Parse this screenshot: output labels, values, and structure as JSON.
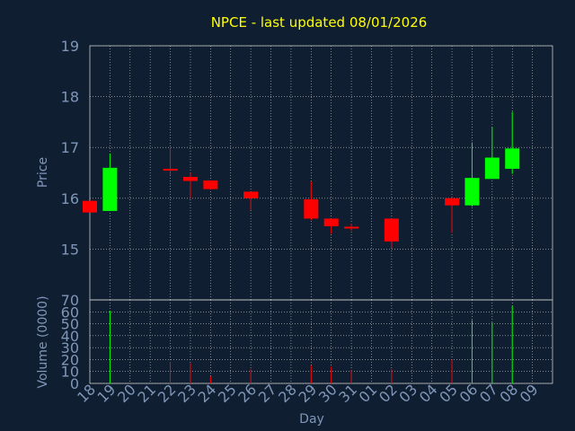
{
  "colors": {
    "background": "#0f1e30",
    "axis_text": "#7f96b8",
    "title": "#ffff00",
    "grid": "#c8c8c8",
    "up": "#00ff00",
    "down": "#ff0000",
    "plot_border": "#c8c8c8"
  },
  "chart_data": [
    {
      "type": "candlestick",
      "title": "NPCE - last updated 08/01/2026",
      "ylabel": "Price",
      "ylim": [
        14.0,
        19.0
      ],
      "yticks": [
        15,
        16,
        17,
        18,
        19
      ],
      "x_tick_labels": [
        "18",
        "19",
        "20",
        "21",
        "22",
        "23",
        "24",
        "25",
        "26",
        "27",
        "28",
        "29",
        "30",
        "31",
        "01",
        "02",
        "03",
        "04",
        "05",
        "06",
        "07",
        "08",
        "09"
      ],
      "grid": true,
      "candles": [
        {
          "x": "18",
          "open": 15.95,
          "high": 15.95,
          "low": 15.72,
          "close": 15.72
        },
        {
          "x": "19",
          "open": 15.75,
          "high": 16.88,
          "low": 15.75,
          "close": 16.6
        },
        {
          "x": "22",
          "open": 16.58,
          "high": 17.0,
          "low": 16.45,
          "close": 16.56
        },
        {
          "x": "23",
          "open": 16.42,
          "high": 16.5,
          "low": 16.0,
          "close": 16.34
        },
        {
          "x": "24",
          "open": 16.35,
          "high": 16.35,
          "low": 16.17,
          "close": 16.18
        },
        {
          "x": "26",
          "open": 16.13,
          "high": 16.13,
          "low": 15.77,
          "close": 16.0
        },
        {
          "x": "29",
          "open": 15.98,
          "high": 16.33,
          "low": 15.57,
          "close": 15.6
        },
        {
          "x": "30",
          "open": 15.6,
          "high": 15.6,
          "low": 15.3,
          "close": 15.45
        },
        {
          "x": "31",
          "open": 15.44,
          "high": 15.5,
          "low": 15.36,
          "close": 15.42
        },
        {
          "x": "02",
          "open": 15.6,
          "high": 15.6,
          "low": 15.02,
          "close": 15.15
        },
        {
          "x": "05",
          "open": 16.0,
          "high": 16.02,
          "low": 15.32,
          "close": 15.86
        },
        {
          "x": "06",
          "open": 15.86,
          "high": 17.1,
          "low": 15.84,
          "close": 16.4
        },
        {
          "x": "07",
          "open": 16.38,
          "high": 17.4,
          "low": 16.38,
          "close": 16.8
        },
        {
          "x": "08",
          "open": 16.58,
          "high": 17.7,
          "low": 16.48,
          "close": 16.98
        }
      ]
    },
    {
      "type": "bar",
      "ylabel": "Volume (0000)",
      "xlabel": "Day",
      "ylim": [
        0,
        70
      ],
      "yticks": [
        0,
        10,
        20,
        30,
        40,
        50,
        60,
        70
      ],
      "x_tick_labels": [
        "18",
        "19",
        "20",
        "21",
        "22",
        "23",
        "24",
        "25",
        "26",
        "27",
        "28",
        "29",
        "30",
        "31",
        "01",
        "02",
        "03",
        "04",
        "05",
        "06",
        "07",
        "08",
        "09"
      ],
      "bars": [
        {
          "x": "18",
          "value": 0,
          "direction": "down"
        },
        {
          "x": "19",
          "value": 61,
          "direction": "up"
        },
        {
          "x": "22",
          "value": 18,
          "direction": "down"
        },
        {
          "x": "23",
          "value": 17,
          "direction": "down"
        },
        {
          "x": "24",
          "value": 6,
          "direction": "down"
        },
        {
          "x": "26",
          "value": 12,
          "direction": "down"
        },
        {
          "x": "29",
          "value": 15,
          "direction": "down"
        },
        {
          "x": "30",
          "value": 14,
          "direction": "down"
        },
        {
          "x": "31",
          "value": 11,
          "direction": "down"
        },
        {
          "x": "02",
          "value": 12,
          "direction": "down"
        },
        {
          "x": "05",
          "value": 20,
          "direction": "down"
        },
        {
          "x": "06",
          "value": 53,
          "direction": "up"
        },
        {
          "x": "07",
          "value": 51,
          "direction": "up"
        },
        {
          "x": "08",
          "value": 65,
          "direction": "up"
        }
      ]
    }
  ]
}
